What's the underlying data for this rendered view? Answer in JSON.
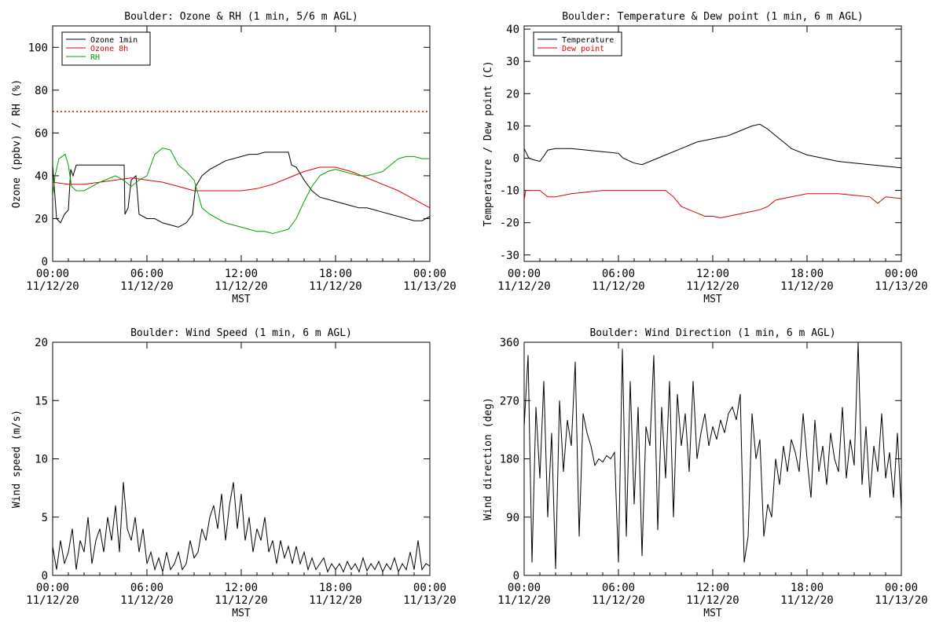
{
  "chart_data": [
    {
      "type": "line",
      "title": "Boulder: Ozone & RH (1 min, 5/6 m AGL)",
      "xlabel": "MST",
      "ylabel": "Ozone (ppbv) / RH (%)",
      "ylim": [
        0,
        110
      ],
      "yticks": [
        0,
        20,
        40,
        60,
        80,
        100
      ],
      "xlim_hours": [
        0,
        24
      ],
      "xtick_labels": [
        [
          "00:00",
          "11/12/20"
        ],
        [
          "06:00",
          "11/12/20"
        ],
        [
          "12:00",
          "11/12/20"
        ],
        [
          "18:00",
          "11/12/20"
        ],
        [
          "00:00",
          "11/13/20"
        ]
      ],
      "legend_position": "top-left",
      "reference_line": {
        "y": 70,
        "color": "#e00000",
        "style": "dotted"
      },
      "series": [
        {
          "name": "Ozone 1min",
          "color": "#000000",
          "x": [
            0,
            0.25,
            0.5,
            0.75,
            1,
            1.15,
            1.3,
            1.5,
            2,
            3,
            4,
            4.55,
            4.6,
            4.8,
            5,
            5.3,
            5.5,
            6,
            6.5,
            7,
            7.5,
            8,
            8.5,
            8.9,
            9.1,
            9.5,
            10,
            10.5,
            11,
            11.5,
            12,
            12.5,
            13,
            13.5,
            14,
            14.5,
            15,
            15.2,
            15.5,
            16,
            16.5,
            17,
            17.5,
            18,
            18.5,
            19,
            19.5,
            20,
            20.5,
            21,
            21.5,
            22,
            22.5,
            23,
            23.5,
            24
          ],
          "y": [
            45,
            20,
            18,
            22,
            24,
            43,
            40,
            45,
            45,
            45,
            45,
            45,
            22,
            25,
            38,
            40,
            22,
            20,
            20,
            18,
            17,
            16,
            18,
            22,
            35,
            40,
            43,
            45,
            47,
            48,
            49,
            50,
            50,
            51,
            51,
            51,
            51,
            45,
            44,
            38,
            33,
            30,
            29,
            28,
            27,
            26,
            25,
            25,
            24,
            23,
            22,
            21,
            20,
            19,
            19,
            21
          ]
        },
        {
          "name": "Ozone 8h",
          "color": "#e00000",
          "x": [
            0,
            1,
            2,
            3,
            4,
            5,
            6,
            7,
            8,
            9,
            10,
            11,
            12,
            13,
            14,
            15,
            16,
            17,
            18,
            19,
            20,
            21,
            22,
            23,
            24
          ],
          "y": [
            37,
            36,
            36,
            37,
            38,
            39,
            38,
            37,
            35,
            33,
            33,
            33,
            33,
            34,
            36,
            39,
            42,
            44,
            44,
            42,
            39,
            36,
            33,
            29,
            25
          ]
        },
        {
          "name": "RH",
          "color": "#00a000",
          "x": [
            0,
            0.15,
            0.4,
            0.8,
            1,
            1.2,
            1.5,
            2,
            3,
            4,
            4.5,
            5,
            5.5,
            6,
            6.5,
            7,
            7.5,
            8,
            8.5,
            9,
            9.5,
            10,
            10.5,
            11,
            11.5,
            12,
            12.5,
            13,
            13.5,
            14,
            14.5,
            15,
            15.5,
            16,
            16.5,
            17,
            17.5,
            18,
            18.5,
            19,
            19.5,
            20,
            20.5,
            21,
            21.5,
            22,
            22.5,
            23,
            23.5,
            24
          ],
          "y": [
            30,
            40,
            48,
            50,
            45,
            35,
            33,
            33,
            37,
            40,
            38,
            35,
            38,
            40,
            50,
            53,
            52,
            45,
            42,
            38,
            25,
            22,
            20,
            18,
            17,
            16,
            15,
            14,
            14,
            13,
            14,
            15,
            20,
            28,
            35,
            40,
            42,
            43,
            42,
            41,
            40,
            40,
            41,
            42,
            45,
            48,
            49,
            49,
            48,
            48
          ]
        }
      ]
    },
    {
      "type": "line",
      "title": "Boulder: Temperature & Dew point (1 min, 6 m AGL)",
      "xlabel": "MST",
      "ylabel": "Temperature / Dew point (C)",
      "ylim": [
        -32,
        41
      ],
      "yticks": [
        -30,
        -20,
        -10,
        0,
        10,
        20,
        30,
        40
      ],
      "xlim_hours": [
        0,
        24
      ],
      "xtick_labels": [
        [
          "00:00",
          "11/12/20"
        ],
        [
          "06:00",
          "11/12/20"
        ],
        [
          "12:00",
          "11/12/20"
        ],
        [
          "18:00",
          "11/12/20"
        ],
        [
          "00:00",
          "11/13/20"
        ]
      ],
      "legend_position": "top-left",
      "series": [
        {
          "name": "Temperature",
          "color": "#000000",
          "x": [
            0,
            0.1,
            0.3,
            0.6,
            1,
            1.3,
            1.5,
            2,
            3,
            4,
            5,
            6,
            6.3,
            7,
            7.5,
            8,
            9,
            10,
            11,
            12,
            12.5,
            13,
            13.5,
            14,
            14.5,
            15,
            15.5,
            16,
            16.5,
            17,
            17.5,
            18,
            19,
            20,
            21,
            22,
            23,
            24
          ],
          "y": [
            3,
            2,
            0,
            -0.5,
            -1,
            1,
            2.5,
            3,
            3,
            2.5,
            2,
            1.5,
            0,
            -1.5,
            -2,
            -1,
            1,
            3,
            5,
            6,
            6.5,
            7,
            8,
            9,
            10,
            10.5,
            9,
            7,
            5,
            3,
            2,
            1,
            0,
            -1,
            -1.5,
            -2,
            -2.5,
            -3
          ]
        },
        {
          "name": "Dew point",
          "color": "#e00000",
          "x": [
            0,
            0.1,
            0.3,
            1,
            1.5,
            2,
            3,
            4,
            5,
            6,
            7,
            8,
            9,
            9.5,
            10,
            10.5,
            11,
            11.5,
            12,
            12.5,
            13,
            13.5,
            14,
            14.5,
            15,
            15.5,
            16,
            17,
            18,
            19,
            20,
            21,
            22,
            22.5,
            23,
            24
          ],
          "y": [
            -13,
            -10,
            -10,
            -10,
            -12,
            -12,
            -11,
            -10.5,
            -10,
            -10,
            -10,
            -10,
            -10,
            -12,
            -15,
            -16,
            -17,
            -18,
            -18,
            -18.5,
            -18,
            -17.5,
            -17,
            -16.5,
            -16,
            -15,
            -13,
            -12,
            -11,
            -11,
            -11,
            -11.5,
            -12,
            -14,
            -12,
            -12.5
          ]
        }
      ]
    },
    {
      "type": "line",
      "title": "Boulder: Wind Speed (1 min, 6 m AGL)",
      "xlabel": "MST",
      "ylabel": "Wind speed (m/s)",
      "ylim": [
        0,
        20
      ],
      "yticks": [
        0,
        5,
        10,
        15,
        20
      ],
      "xlim_hours": [
        0,
        24
      ],
      "xtick_labels": [
        [
          "00:00",
          "11/12/20"
        ],
        [
          "06:00",
          "11/12/20"
        ],
        [
          "12:00",
          "11/12/20"
        ],
        [
          "18:00",
          "11/12/20"
        ],
        [
          "00:00",
          "11/13/20"
        ]
      ],
      "series": [
        {
          "name": "",
          "color": "#000000",
          "x": [
            0,
            0.25,
            0.5,
            0.75,
            1,
            1.25,
            1.5,
            1.75,
            2,
            2.25,
            2.5,
            2.75,
            3,
            3.25,
            3.5,
            3.75,
            4,
            4.25,
            4.5,
            4.75,
            5,
            5.25,
            5.5,
            5.75,
            6,
            6.25,
            6.5,
            6.75,
            7,
            7.25,
            7.5,
            7.75,
            8,
            8.25,
            8.5,
            8.75,
            9,
            9.25,
            9.5,
            9.75,
            10,
            10.25,
            10.5,
            10.75,
            11,
            11.25,
            11.5,
            11.75,
            12,
            12.25,
            12.5,
            12.75,
            13,
            13.25,
            13.5,
            13.75,
            14,
            14.25,
            14.5,
            14.75,
            15,
            15.25,
            15.5,
            15.75,
            16,
            16.25,
            16.5,
            16.75,
            17,
            17.25,
            17.5,
            17.75,
            18,
            18.25,
            18.5,
            18.75,
            19,
            19.25,
            19.5,
            19.75,
            20,
            20.25,
            20.5,
            20.75,
            21,
            21.25,
            21.5,
            21.75,
            22,
            22.25,
            22.5,
            22.75,
            23,
            23.25,
            23.5,
            23.75,
            24
          ],
          "y": [
            2.5,
            0.5,
            3,
            1,
            2,
            4,
            0.5,
            3,
            2,
            5,
            1,
            3,
            4,
            2,
            5,
            3,
            6,
            2,
            8,
            4,
            3,
            5,
            2,
            4,
            1,
            2,
            0.5,
            1.5,
            0.3,
            2,
            0.5,
            1,
            2,
            0.5,
            1,
            3,
            1.5,
            2,
            4,
            3,
            5,
            6,
            4,
            7,
            3,
            6,
            8,
            4,
            7,
            3,
            5,
            2,
            4,
            3,
            5,
            2,
            3,
            1,
            3,
            1.5,
            2.5,
            1,
            2.5,
            1,
            2,
            0.5,
            1.5,
            0.5,
            1,
            1.5,
            0.3,
            1,
            0.5,
            1,
            0.3,
            1.2,
            0.5,
            1,
            0.3,
            1.5,
            0.4,
            1,
            0.5,
            1.2,
            0.3,
            1,
            0.5,
            1.5,
            0.3,
            1,
            0.5,
            2,
            0.5,
            3,
            0.5,
            1,
            0.8
          ]
        }
      ]
    },
    {
      "type": "line",
      "title": "Boulder: Wind Direction (1 min, 6 m AGL)",
      "xlabel": "MST",
      "ylabel": "Wind direction (deg)",
      "ylim": [
        0,
        360
      ],
      "yticks": [
        0,
        90,
        180,
        270,
        360
      ],
      "xlim_hours": [
        0,
        24
      ],
      "xtick_labels": [
        [
          "00:00",
          "11/12/20"
        ],
        [
          "06:00",
          "11/12/20"
        ],
        [
          "12:00",
          "11/12/20"
        ],
        [
          "18:00",
          "11/12/20"
        ],
        [
          "00:00",
          "11/13/20"
        ]
      ],
      "series": [
        {
          "name": "",
          "color": "#000000",
          "x": [
            0,
            0.25,
            0.5,
            0.75,
            1,
            1.25,
            1.5,
            1.75,
            2,
            2.25,
            2.5,
            2.75,
            3,
            3.25,
            3.5,
            3.75,
            4,
            4.25,
            4.5,
            4.75,
            5,
            5.25,
            5.5,
            5.75,
            6,
            6.25,
            6.5,
            6.75,
            7,
            7.25,
            7.5,
            7.75,
            8,
            8.25,
            8.5,
            8.75,
            9,
            9.25,
            9.5,
            9.75,
            10,
            10.25,
            10.5,
            10.75,
            11,
            11.25,
            11.5,
            11.75,
            12,
            12.25,
            12.5,
            12.75,
            13,
            13.25,
            13.5,
            13.75,
            14,
            14.25,
            14.5,
            14.75,
            15,
            15.25,
            15.5,
            15.75,
            16,
            16.25,
            16.5,
            16.75,
            17,
            17.25,
            17.5,
            17.75,
            18,
            18.25,
            18.5,
            18.75,
            19,
            19.25,
            19.5,
            19.75,
            20,
            20.25,
            20.5,
            20.75,
            21,
            21.25,
            21.5,
            21.75,
            22,
            22.25,
            22.5,
            22.75,
            23,
            23.25,
            23.5,
            23.75,
            24
          ],
          "y": [
            230,
            340,
            20,
            260,
            150,
            300,
            90,
            220,
            10,
            270,
            160,
            240,
            200,
            330,
            60,
            250,
            220,
            200,
            170,
            180,
            175,
            185,
            180,
            190,
            20,
            350,
            60,
            300,
            110,
            260,
            30,
            230,
            200,
            340,
            70,
            260,
            150,
            300,
            90,
            280,
            200,
            250,
            160,
            300,
            180,
            220,
            250,
            200,
            230,
            210,
            240,
            220,
            250,
            260,
            240,
            280,
            20,
            60,
            250,
            180,
            210,
            60,
            110,
            90,
            180,
            140,
            200,
            160,
            210,
            190,
            160,
            250,
            180,
            120,
            240,
            160,
            200,
            140,
            220,
            180,
            160,
            260,
            150,
            210,
            170,
            360,
            140,
            230,
            120,
            200,
            160,
            250,
            150,
            190,
            120,
            220,
            100
          ]
        }
      ]
    }
  ]
}
